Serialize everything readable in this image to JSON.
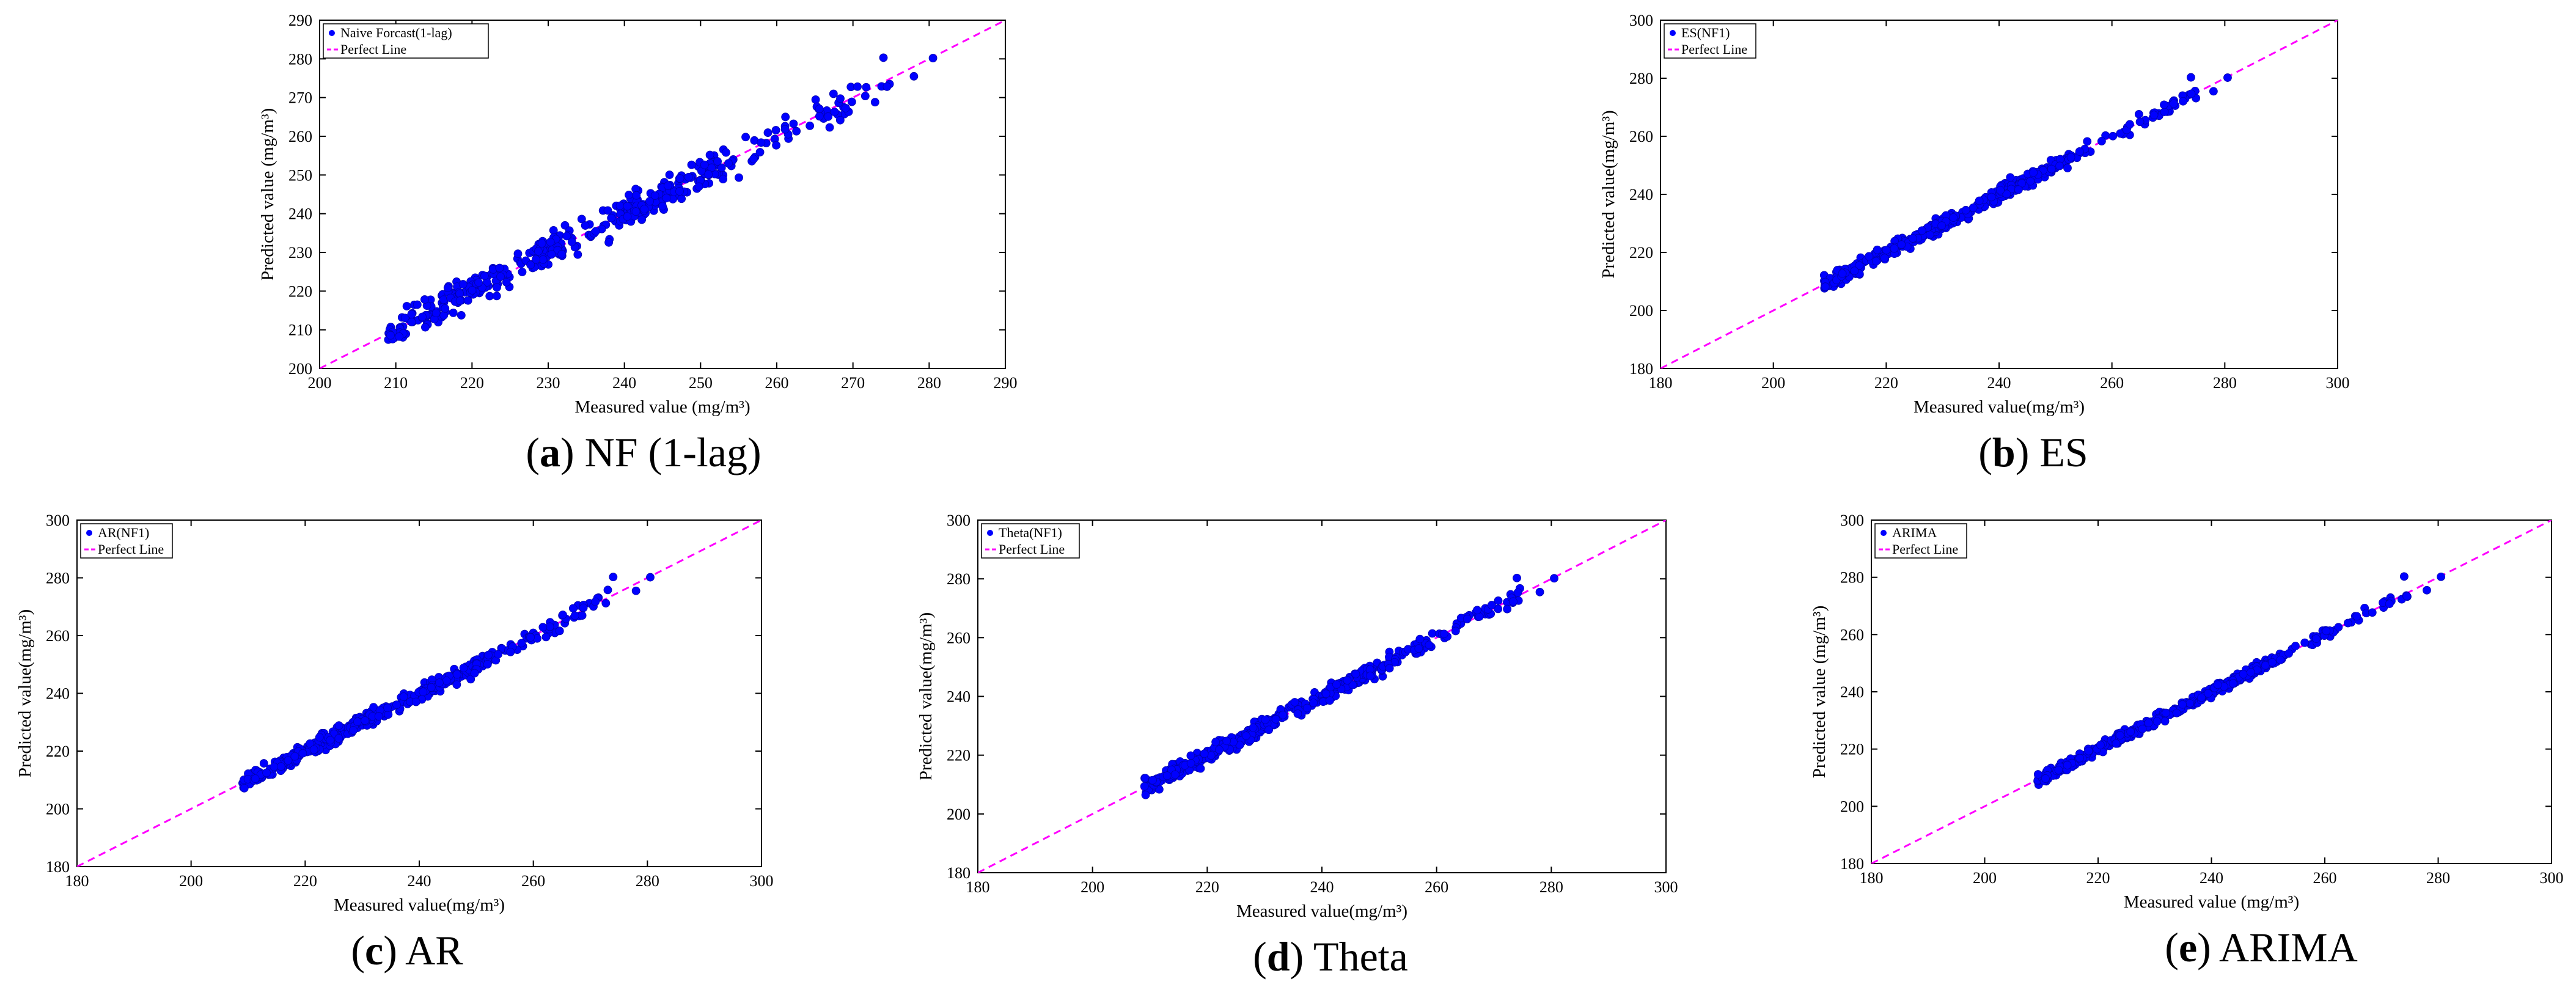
{
  "chart_data": [
    {
      "type": "scatter",
      "panel_letter": "a",
      "caption": " NF (1-lag)",
      "xlabel": "Measured value (mg/m³)",
      "ylabel": "Predicted value (mg/m³)",
      "xlim": [
        200,
        290
      ],
      "ylim": [
        200,
        290
      ],
      "ticks": [
        200,
        210,
        220,
        230,
        240,
        250,
        260,
        270,
        280,
        290
      ],
      "legend": [
        "Naive Forcast(1-lag)",
        "Perfect Line"
      ],
      "legend_position": "top-left",
      "grid": false,
      "seed": 11,
      "noise": 4.2,
      "series": [
        {
          "name": "Naive Forcast(1-lag)",
          "color": "#0000ff"
        }
      ],
      "reference_line": {
        "name": "Perfect Line",
        "color": "#ff00ff",
        "style": "dashed"
      }
    },
    {
      "type": "scatter",
      "panel_letter": "b",
      "caption": " ES",
      "xlabel": "Measured value(mg/m³)",
      "ylabel": "Predicted value(mg/m³)",
      "xlim": [
        180,
        300
      ],
      "ylim": [
        180,
        300
      ],
      "ticks": [
        180,
        200,
        220,
        240,
        260,
        280,
        300
      ],
      "legend": [
        "ES(NF1)",
        "Perfect Line"
      ],
      "legend_position": "top-left",
      "grid": false,
      "seed": 23,
      "noise": 2.6,
      "series": [
        {
          "name": "ES(NF1)",
          "color": "#0000ff"
        }
      ],
      "reference_line": {
        "name": "Perfect Line",
        "color": "#ff00ff",
        "style": "dashed"
      }
    },
    {
      "type": "scatter",
      "panel_letter": "c",
      "caption": " AR",
      "xlabel": "Measured value(mg/m³)",
      "ylabel": "Predicted value(mg/m³)",
      "xlim": [
        180,
        300
      ],
      "ylim": [
        180,
        300
      ],
      "ticks": [
        180,
        200,
        220,
        240,
        260,
        280,
        300
      ],
      "legend": [
        "AR(NF1)",
        "Perfect Line"
      ],
      "legend_position": "top-left",
      "grid": false,
      "seed": 37,
      "noise": 2.8,
      "series": [
        {
          "name": "AR(NF1)",
          "color": "#0000ff"
        }
      ],
      "reference_line": {
        "name": "Perfect Line",
        "color": "#ff00ff",
        "style": "dashed"
      }
    },
    {
      "type": "scatter",
      "panel_letter": "d",
      "caption": " Theta",
      "xlabel": "Measured value(mg/m³)",
      "ylabel": "Predicted value(mg/m³)",
      "xlim": [
        180,
        300
      ],
      "ylim": [
        180,
        300
      ],
      "ticks": [
        180,
        200,
        220,
        240,
        260,
        280,
        300
      ],
      "legend": [
        "Theta(NF1)",
        "Perfect Line"
      ],
      "legend_position": "top-left",
      "grid": false,
      "seed": 41,
      "noise": 2.7,
      "series": [
        {
          "name": "Theta(NF1)",
          "color": "#0000ff"
        }
      ],
      "reference_line": {
        "name": "Perfect Line",
        "color": "#ff00ff",
        "style": "dashed"
      }
    },
    {
      "type": "scatter",
      "panel_letter": "e",
      "caption": " ARIMA",
      "xlabel": "Measured value (mg/m³)",
      "ylabel": "Predicted value (mg/m³)",
      "xlim": [
        180,
        300
      ],
      "ylim": [
        180,
        300
      ],
      "ticks": [
        180,
        200,
        220,
        240,
        260,
        280,
        300
      ],
      "legend": [
        "ARIMA",
        "Perfect Line"
      ],
      "legend_position": "top-left",
      "grid": false,
      "seed": 53,
      "noise": 1.9,
      "series": [
        {
          "name": "ARIMA",
          "color": "#0000ff"
        }
      ],
      "reference_line": {
        "name": "Perfect Line",
        "color": "#ff00ff",
        "style": "dashed"
      }
    }
  ]
}
